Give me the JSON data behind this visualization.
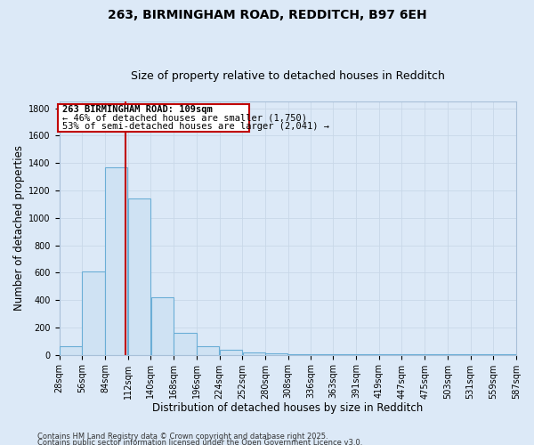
{
  "title": "263, BIRMINGHAM ROAD, REDDITCH, B97 6EH",
  "subtitle": "Size of property relative to detached houses in Redditch",
  "xlabel": "Distribution of detached houses by size in Redditch",
  "ylabel": "Number of detached properties",
  "footnote1": "Contains HM Land Registry data © Crown copyright and database right 2025.",
  "footnote2": "Contains public sector information licensed under the Open Government Licence v3.0.",
  "annotation_line1": "263 BIRMINGHAM ROAD: 109sqm",
  "annotation_line2": "← 46% of detached houses are smaller (1,750)",
  "annotation_line3": "53% of semi-detached houses are larger (2,041) →",
  "bin_edges": [
    28,
    56,
    84,
    112,
    140,
    168,
    196,
    224,
    252,
    280,
    308,
    336,
    363,
    391,
    419,
    447,
    475,
    503,
    531,
    559,
    587
  ],
  "bin_counts": [
    60,
    610,
    1370,
    1140,
    420,
    160,
    60,
    35,
    20,
    10,
    5,
    3,
    2,
    2,
    2,
    1,
    1,
    1,
    1,
    1
  ],
  "bar_facecolor": "#cfe2f3",
  "bar_edgecolor": "#6baed6",
  "bar_linewidth": 0.8,
  "vline_x": 109,
  "vline_color": "#c00000",
  "vline_linewidth": 1.5,
  "annotation_box_edgecolor": "#c00000",
  "annotation_box_facecolor": "#ffffff",
  "grid_color": "#c8d8e8",
  "background_color": "#dce9f7",
  "ylim": [
    0,
    1850
  ],
  "yticks": [
    0,
    200,
    400,
    600,
    800,
    1000,
    1200,
    1400,
    1600,
    1800
  ],
  "title_fontsize": 10,
  "subtitle_fontsize": 9,
  "axis_label_fontsize": 8.5,
  "tick_fontsize": 7,
  "annotation_fontsize": 7.5,
  "footnote_fontsize": 6
}
